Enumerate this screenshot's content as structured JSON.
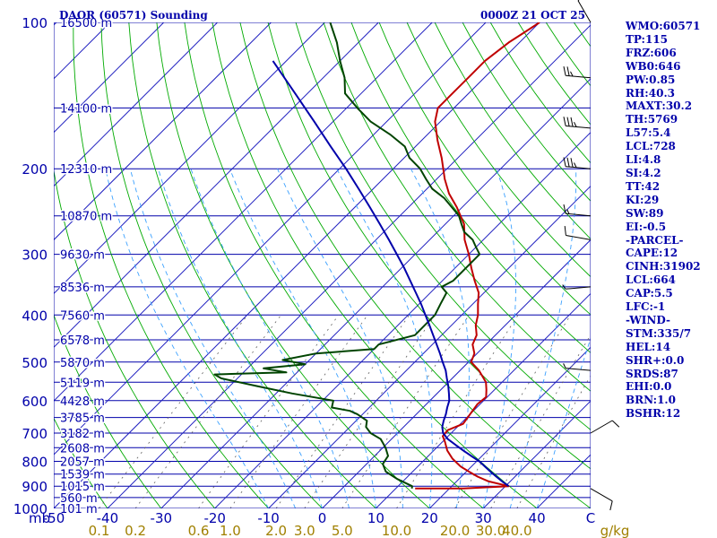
{
  "header": {
    "title": "DAOR (60571) Sounding",
    "datetime": "0000Z 21 OCT 25"
  },
  "colors": {
    "isobar": "#0000aa",
    "isotherm": "#2020c0",
    "dry_adiabat": "#00aa00",
    "moist_adiabat": "#3aa0ff",
    "mixing_ratio": "#606060",
    "temperature": "#c00000",
    "dewpoint": "#004400",
    "parcel": "#0000aa",
    "wind_barb": "#000000",
    "text": "#0000aa",
    "mixing_label": "#a08000"
  },
  "chart_data": {
    "type": "line",
    "subtype": "skew-t log-p sounding diagram",
    "y_axis": {
      "scale": "log",
      "range": [
        1000,
        100
      ],
      "units": "mb",
      "ticks": [
        "100",
        "200",
        "300",
        "400",
        "500",
        "600",
        "700",
        "800",
        "900",
        "1000"
      ],
      "corner_label": "mb"
    },
    "x_axis": {
      "range": [
        -50,
        50
      ],
      "units": "C",
      "ticks": [
        "-50",
        "-40",
        "-30",
        "-20",
        "-10",
        "0",
        "10",
        "20",
        "30",
        "40",
        "C"
      ]
    },
    "mixing_ratio_axis": {
      "units": "g/kg",
      "ticks": [
        "0.1",
        "0.2",
        "0.6",
        "1.0",
        "2.0",
        "3.0",
        "5.0",
        "10.0",
        "20.0",
        "30.0",
        "40.0",
        "g/kg"
      ]
    },
    "height_labels": [
      {
        "p": 100,
        "label": "16500 m"
      },
      {
        "p": 150,
        "label": "14100 m"
      },
      {
        "p": 200,
        "label": "12310 m"
      },
      {
        "p": 250,
        "label": "10870 m"
      },
      {
        "p": 300,
        "label": "9630 m"
      },
      {
        "p": 350,
        "label": "8536 m"
      },
      {
        "p": 400,
        "label": "7560 m"
      },
      {
        "p": 450,
        "label": "6578 m"
      },
      {
        "p": 500,
        "label": "5870 m"
      },
      {
        "p": 550,
        "label": "5119 m"
      },
      {
        "p": 600,
        "label": "4428 m"
      },
      {
        "p": 650,
        "label": "3785 m"
      },
      {
        "p": 700,
        "label": "3182 m"
      },
      {
        "p": 750,
        "label": "2608 m"
      },
      {
        "p": 800,
        "label": "2057 m"
      },
      {
        "p": 850,
        "label": "1539 m"
      },
      {
        "p": 900,
        "label": "1015 m"
      },
      {
        "p": 950,
        "label": "560 m"
      },
      {
        "p": 1000,
        "label": "101 m"
      }
    ],
    "series": [
      {
        "key": "temperature",
        "points": [
          [
            910,
            13.6
          ],
          [
            910,
            22.6
          ],
          [
            900,
            30.6
          ],
          [
            880,
            26
          ],
          [
            860,
            23
          ],
          [
            840,
            20.5
          ],
          [
            820,
            18
          ],
          [
            790,
            15
          ],
          [
            760,
            12.5
          ],
          [
            730,
            10.5
          ],
          [
            710,
            9
          ],
          [
            690,
            8.8
          ],
          [
            670,
            10.5
          ],
          [
            640,
            10
          ],
          [
            610,
            9.5
          ],
          [
            590,
            9.8
          ],
          [
            570,
            8.5
          ],
          [
            550,
            7
          ],
          [
            520,
            3.5
          ],
          [
            500,
            0.5
          ],
          [
            480,
            -0.5
          ],
          [
            460,
            -2.5
          ],
          [
            440,
            -3.5
          ],
          [
            420,
            -5.5
          ],
          [
            400,
            -7
          ],
          [
            380,
            -9
          ],
          [
            360,
            -11
          ],
          [
            340,
            -14
          ],
          [
            320,
            -17
          ],
          [
            300,
            -20
          ],
          [
            280,
            -23.5
          ],
          [
            260,
            -26.5
          ],
          [
            240,
            -31
          ],
          [
            225,
            -35
          ],
          [
            210,
            -38.5
          ],
          [
            190,
            -43
          ],
          [
            175,
            -47
          ],
          [
            160,
            -51
          ],
          [
            150,
            -53
          ],
          [
            140,
            -53
          ],
          [
            130,
            -53
          ],
          [
            120,
            -53
          ],
          [
            110,
            -52
          ],
          [
            105,
            -51
          ],
          [
            100,
            -50
          ]
        ]
      },
      {
        "key": "dewpoint",
        "points": [
          [
            910,
            13
          ],
          [
            900,
            12.6
          ],
          [
            870,
            8.5
          ],
          [
            840,
            5
          ],
          [
            810,
            3
          ],
          [
            780,
            2.5
          ],
          [
            750,
            0.5
          ],
          [
            720,
            -2
          ],
          [
            700,
            -5
          ],
          [
            680,
            -7
          ],
          [
            660,
            -8
          ],
          [
            640,
            -11
          ],
          [
            630,
            -13
          ],
          [
            620,
            -17
          ],
          [
            600,
            -18
          ],
          [
            580,
            -27
          ],
          [
            560,
            -35
          ],
          [
            540,
            -43
          ],
          [
            530,
            -45
          ],
          [
            525,
            -32
          ],
          [
            515,
            -37
          ],
          [
            505,
            -30
          ],
          [
            495,
            -35
          ],
          [
            480,
            -30
          ],
          [
            470,
            -20
          ],
          [
            460,
            -20
          ],
          [
            440,
            -15
          ],
          [
            420,
            -15
          ],
          [
            400,
            -15
          ],
          [
            380,
            -16
          ],
          [
            360,
            -17
          ],
          [
            350,
            -19
          ],
          [
            340,
            -18
          ],
          [
            320,
            -18
          ],
          [
            300,
            -18
          ],
          [
            290,
            -20
          ],
          [
            280,
            -22
          ],
          [
            270,
            -25
          ],
          [
            260,
            -27
          ],
          [
            250,
            -29
          ],
          [
            230,
            -35
          ],
          [
            220,
            -39
          ],
          [
            210,
            -42
          ],
          [
            200,
            -45
          ],
          [
            190,
            -49
          ],
          [
            180,
            -52
          ],
          [
            170,
            -57
          ],
          [
            160,
            -63
          ],
          [
            150,
            -68
          ],
          [
            140,
            -73
          ],
          [
            130,
            -76
          ],
          [
            120,
            -80
          ],
          [
            110,
            -84
          ],
          [
            100,
            -89
          ]
        ]
      },
      {
        "key": "parcel",
        "points": [
          [
            900,
            30.6
          ],
          [
            880,
            28.5
          ],
          [
            860,
            26.5
          ],
          [
            840,
            24.5
          ],
          [
            820,
            22.5
          ],
          [
            800,
            20.5
          ],
          [
            780,
            18
          ],
          [
            760,
            15.5
          ],
          [
            740,
            13
          ],
          [
            720,
            10.5
          ],
          [
            700,
            8.5
          ],
          [
            680,
            7.2
          ],
          [
            660,
            6.3
          ],
          [
            640,
            5.5
          ],
          [
            620,
            4.5
          ],
          [
            600,
            3.6
          ],
          [
            580,
            2.2
          ],
          [
            560,
            0.7
          ],
          [
            540,
            -1
          ],
          [
            520,
            -2.7
          ],
          [
            500,
            -4.8
          ],
          [
            480,
            -6.9
          ],
          [
            460,
            -9.2
          ],
          [
            440,
            -11.6
          ],
          [
            420,
            -14.1
          ],
          [
            400,
            -16.8
          ],
          [
            380,
            -19.6
          ],
          [
            360,
            -22.7
          ],
          [
            340,
            -26
          ],
          [
            320,
            -29.5
          ],
          [
            300,
            -33.4
          ],
          [
            280,
            -37.6
          ],
          [
            260,
            -42.2
          ],
          [
            240,
            -47.2
          ],
          [
            220,
            -52.7
          ],
          [
            200,
            -58.8
          ],
          [
            180,
            -65.8
          ],
          [
            160,
            -73.5
          ],
          [
            140,
            -82.3
          ],
          [
            130,
            -87.2
          ],
          [
            120,
            -92.5
          ]
        ]
      }
    ],
    "wind_barbs": [
      {
        "p": 100,
        "dir": 330,
        "kt": 10
      },
      {
        "p": 130,
        "dir": 275,
        "kt": 25
      },
      {
        "p": 165,
        "dir": 275,
        "kt": 35
      },
      {
        "p": 200,
        "dir": 275,
        "kt": 35
      },
      {
        "p": 250,
        "dir": 275,
        "kt": 15
      },
      {
        "p": 280,
        "dir": 280,
        "kt": 10
      },
      {
        "p": 350,
        "dir": 265,
        "kt": 5
      },
      {
        "p": 520,
        "dir": 275,
        "kt": 5
      },
      {
        "p": 700,
        "dir": 60,
        "kt": 10
      },
      {
        "p": 910,
        "dir": 120,
        "kt": 10
      }
    ]
  },
  "indices": [
    "WMO:60571",
    "TP:115",
    "FRZ:606",
    "WB0:646",
    "PW:0.85",
    "RH:40.3",
    "MAXT:30.2",
    "TH:5769",
    "L57:5.4",
    "LCL:728",
    "LI:4.8",
    "SI:4.2",
    "TT:42",
    "KI:29",
    "SW:89",
    "EI:-0.5",
    "-PARCEL-",
    "CAPE:12",
    "CINH:31902",
    "LCL:664",
    "CAP:5.5",
    "LFC:-1",
    "-WIND-",
    "STM:335/7",
    "HEL:14",
    "SHR+:0.0",
    "SRDS:87",
    "EHI:0.0",
    "BRN:1.0",
    "BSHR:12"
  ]
}
